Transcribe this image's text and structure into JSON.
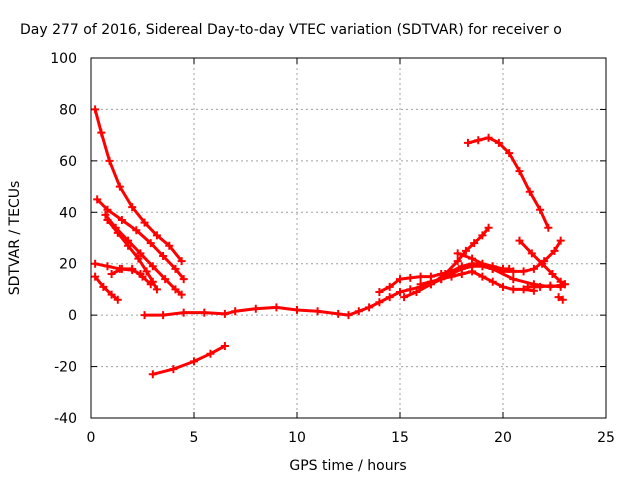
{
  "chart_data": {
    "type": "line",
    "title": "Day 277 of 2016, Sidereal Day-to-day VTEC variation (SDTVAR) for receiver o",
    "xlabel": "GPS time / hours",
    "ylabel": "SDTVAR / TECUs",
    "xlim": [
      0,
      25
    ],
    "ylim": [
      -40,
      100
    ],
    "xticks": [
      0,
      5,
      10,
      15,
      20,
      25
    ],
    "yticks": [
      -40,
      -20,
      0,
      20,
      40,
      60,
      80,
      100
    ],
    "grid": true,
    "colors": {
      "series": "#ff0000",
      "grid": "#a0a0a0",
      "frame": "#000000"
    },
    "series": [
      {
        "color": "#ff0000",
        "points": [
          [
            0.2,
            80
          ],
          [
            0.5,
            71
          ],
          [
            0.9,
            60
          ],
          [
            1.4,
            50
          ],
          [
            2.0,
            42
          ],
          [
            2.6,
            36
          ],
          [
            3.2,
            31
          ],
          [
            3.8,
            27
          ],
          [
            4.4,
            21
          ]
        ]
      },
      {
        "color": "#ff0000",
        "points": [
          [
            0.3,
            45
          ],
          [
            0.8,
            41
          ],
          [
            1.5,
            37
          ],
          [
            2.2,
            33
          ],
          [
            2.9,
            28
          ],
          [
            3.5,
            23
          ],
          [
            4.1,
            18
          ],
          [
            4.5,
            14
          ]
        ]
      },
      {
        "color": "#ff0000",
        "points": [
          [
            0.7,
            39
          ],
          [
            1.2,
            34
          ],
          [
            1.8,
            29
          ],
          [
            2.4,
            24
          ],
          [
            3.0,
            19
          ],
          [
            3.6,
            14
          ],
          [
            4.1,
            10
          ],
          [
            4.4,
            8
          ]
        ]
      },
      {
        "color": "#ff0000",
        "points": [
          [
            0.8,
            37
          ],
          [
            1.3,
            32
          ],
          [
            1.8,
            27
          ],
          [
            2.3,
            22
          ],
          [
            2.7,
            17
          ],
          [
            3.0,
            13
          ],
          [
            3.2,
            10
          ]
        ]
      },
      {
        "color": "#ff0000",
        "points": [
          [
            0.2,
            20
          ],
          [
            0.8,
            19
          ],
          [
            1.4,
            18
          ],
          [
            2.0,
            17.5
          ],
          [
            2.4,
            16
          ]
        ]
      },
      {
        "color": "#ff0000",
        "points": [
          [
            0.2,
            15
          ],
          [
            0.6,
            11
          ],
          [
            1.0,
            8
          ],
          [
            1.3,
            6
          ]
        ]
      },
      {
        "color": "#ff0000",
        "points": [
          [
            1.0,
            16
          ],
          [
            1.5,
            18
          ],
          [
            2.0,
            18
          ],
          [
            2.5,
            15
          ],
          [
            2.9,
            12
          ]
        ]
      },
      {
        "color": "#ff0000",
        "points": [
          [
            2.6,
            0
          ],
          [
            3.5,
            0
          ],
          [
            4.5,
            1
          ],
          [
            5.5,
            1
          ],
          [
            6.5,
            0.5
          ],
          [
            7.0,
            1.5
          ],
          [
            8.0,
            2.5
          ],
          [
            9.0,
            3
          ],
          [
            10.0,
            2
          ],
          [
            11.0,
            1.5
          ],
          [
            12.0,
            0.5
          ],
          [
            12.5,
            0
          ],
          [
            13.0,
            1.5
          ],
          [
            13.5,
            3
          ],
          [
            14.0,
            5
          ],
          [
            14.5,
            7
          ],
          [
            15.0,
            9
          ],
          [
            15.5,
            10
          ],
          [
            16.0,
            11
          ],
          [
            16.5,
            12
          ],
          [
            17.0,
            14
          ],
          [
            17.5,
            16
          ],
          [
            18.0,
            18
          ],
          [
            18.5,
            19
          ],
          [
            19.0,
            19
          ],
          [
            19.5,
            18
          ],
          [
            20.0,
            17
          ],
          [
            20.5,
            17
          ],
          [
            21.0,
            17
          ],
          [
            21.5,
            18
          ],
          [
            22.0,
            21
          ],
          [
            22.5,
            25
          ],
          [
            22.8,
            29
          ]
        ]
      },
      {
        "color": "#ff0000",
        "points": [
          [
            3.0,
            -23
          ],
          [
            4.0,
            -21
          ],
          [
            5.0,
            -18
          ],
          [
            5.8,
            -15
          ],
          [
            6.5,
            -12
          ]
        ]
      },
      {
        "color": "#ff0000",
        "points": [
          [
            14.0,
            9
          ],
          [
            14.5,
            11
          ],
          [
            15.0,
            14
          ],
          [
            15.5,
            14.5
          ],
          [
            16.0,
            15
          ],
          [
            16.5,
            15
          ],
          [
            17.0,
            16
          ],
          [
            17.5,
            17
          ],
          [
            18.0,
            19
          ],
          [
            18.5,
            20
          ],
          [
            19.0,
            20
          ],
          [
            19.5,
            19
          ],
          [
            20.0,
            18
          ],
          [
            20.3,
            18
          ]
        ]
      },
      {
        "color": "#ff0000",
        "points": [
          [
            15.2,
            7
          ],
          [
            15.8,
            9
          ],
          [
            16.5,
            12
          ],
          [
            17.2,
            16
          ],
          [
            17.8,
            21
          ],
          [
            18.2,
            25
          ],
          [
            18.6,
            28
          ],
          [
            19.0,
            31
          ],
          [
            19.3,
            34
          ]
        ]
      },
      {
        "color": "#ff0000",
        "points": [
          [
            16.0,
            12
          ],
          [
            16.5,
            13
          ],
          [
            17.0,
            14
          ],
          [
            17.5,
            15
          ],
          [
            18.0,
            16
          ],
          [
            18.5,
            17
          ],
          [
            19.0,
            15
          ],
          [
            19.5,
            13
          ],
          [
            20.0,
            11
          ],
          [
            20.5,
            10
          ],
          [
            21.0,
            10
          ],
          [
            21.5,
            9.5
          ]
        ]
      },
      {
        "color": "#ff0000",
        "points": [
          [
            17.8,
            24
          ],
          [
            18.5,
            22
          ],
          [
            19.5,
            18
          ],
          [
            20.5,
            14
          ],
          [
            21.5,
            12
          ],
          [
            22.3,
            11
          ],
          [
            23.0,
            12
          ]
        ]
      },
      {
        "color": "#ff0000",
        "points": [
          [
            21.2,
            11
          ],
          [
            21.8,
            11
          ],
          [
            22.3,
            11.5
          ],
          [
            22.8,
            11
          ]
        ]
      },
      {
        "color": "#ff0000",
        "points": [
          [
            20.8,
            29
          ],
          [
            21.4,
            24
          ],
          [
            21.9,
            20
          ],
          [
            22.4,
            16
          ],
          [
            22.8,
            13
          ],
          [
            23.0,
            12
          ]
        ]
      },
      {
        "color": "#ff0000",
        "points": [
          [
            18.3,
            67
          ],
          [
            18.8,
            68
          ],
          [
            19.3,
            69
          ],
          [
            19.8,
            67
          ],
          [
            20.3,
            63
          ],
          [
            20.8,
            56
          ],
          [
            21.3,
            48
          ],
          [
            21.8,
            41
          ],
          [
            22.2,
            34
          ]
        ]
      },
      {
        "color": "#ff0000",
        "points": [
          [
            22.7,
            7
          ],
          [
            22.9,
            6
          ]
        ]
      }
    ]
  }
}
